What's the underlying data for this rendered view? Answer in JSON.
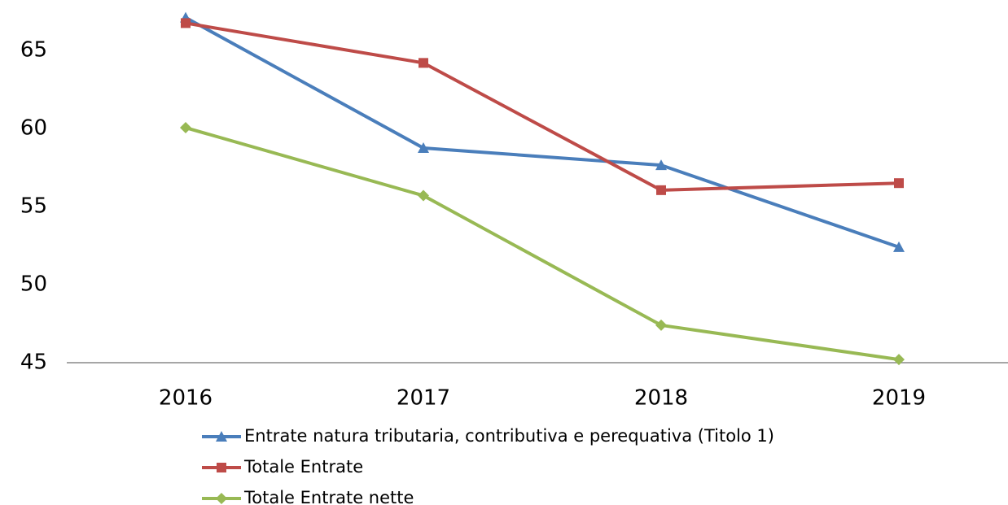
{
  "chart_data": {
    "type": "line",
    "categories": [
      "2016",
      "2017",
      "2018",
      "2019"
    ],
    "series": [
      {
        "name": "Entrate natura tributaria, contributiva e perequativa (Titolo 1)",
        "color": "#4a7ebb",
        "marker": "triangle",
        "values": [
          67.1,
          58.75,
          57.65,
          52.4
        ]
      },
      {
        "name": "Totale Entrate",
        "color": "#be4b48",
        "marker": "square",
        "values": [
          66.75,
          64.2,
          56.05,
          56.5
        ]
      },
      {
        "name": "Totale Entrate nette",
        "color": "#98b954",
        "marker": "diamond",
        "values": [
          60.05,
          55.7,
          47.4,
          45.2
        ]
      }
    ],
    "ylim": [
      45,
      70
    ],
    "yticks": [
      45,
      50,
      55,
      60,
      65
    ],
    "grid": false,
    "legend": "bottom"
  }
}
